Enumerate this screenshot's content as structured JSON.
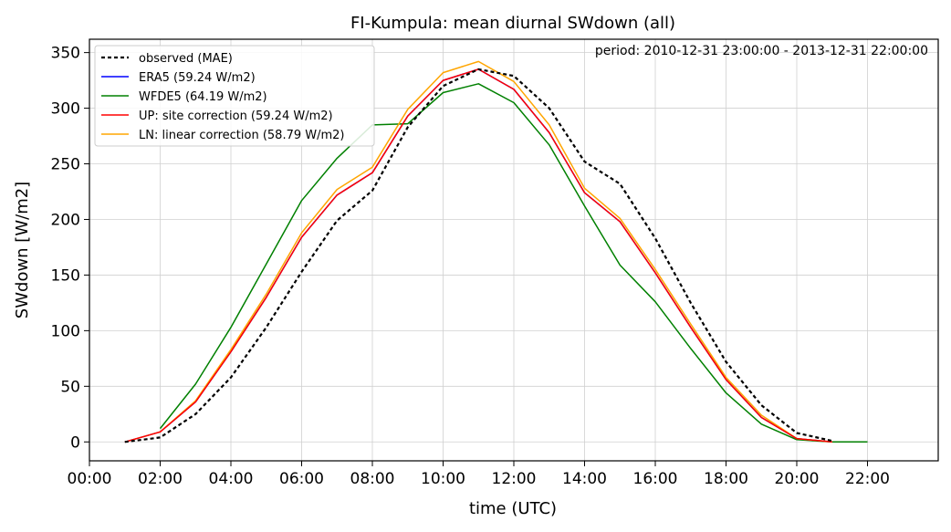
{
  "chart_data": {
    "type": "line",
    "title": "FI-Kumpula: mean diurnal SWdown (all)",
    "xlabel": "time (UTC)",
    "ylabel": "SWdown [W/m2]",
    "annotation": "period: 2010-12-31 23:00:00 - 2013-12-31 22:00:00",
    "xlim": [
      0,
      24
    ],
    "ylim": [
      -17,
      362
    ],
    "x_ticks": [
      0,
      2,
      4,
      6,
      8,
      10,
      12,
      14,
      16,
      18,
      20,
      22
    ],
    "x_tick_labels": [
      "00:00",
      "02:00",
      "04:00",
      "06:00",
      "08:00",
      "10:00",
      "12:00",
      "14:00",
      "16:00",
      "18:00",
      "20:00",
      "22:00"
    ],
    "y_ticks": [
      0,
      50,
      100,
      150,
      200,
      250,
      300,
      350
    ],
    "y_tick_labels": [
      "0",
      "50",
      "100",
      "150",
      "200",
      "250",
      "300",
      "350"
    ],
    "grid": true,
    "legend_position": "top-left",
    "series": [
      {
        "name": "observed (MAE)",
        "color": "#000000",
        "dashed": true,
        "x": [
          1,
          2,
          3,
          4,
          5,
          6,
          7,
          8,
          9,
          10,
          11,
          12,
          13,
          14,
          15,
          16,
          17,
          18,
          19,
          20,
          21
        ],
        "values": [
          0,
          4,
          25,
          58,
          103,
          153,
          199,
          226,
          283,
          320,
          335,
          329,
          300,
          252,
          232,
          183,
          125,
          72,
          33,
          8,
          1
        ]
      },
      {
        "name": "ERA5 (59.24 W/m2)",
        "color": "#0000ff",
        "dashed": false,
        "x": [
          1,
          2,
          3,
          4,
          5,
          6,
          7,
          8,
          9,
          10,
          11,
          12,
          13,
          14,
          15,
          16,
          17,
          18,
          19,
          20,
          21
        ],
        "values": [
          0,
          9,
          36,
          81,
          130,
          184,
          222,
          242,
          293,
          325,
          335,
          317,
          278,
          224,
          198,
          152,
          103,
          56,
          22,
          3,
          0
        ]
      },
      {
        "name": "WFDE5 (64.19 W/m2)",
        "color": "#008000",
        "dashed": false,
        "x": [
          2,
          3,
          4,
          5,
          6,
          7,
          8,
          9,
          10,
          11,
          12,
          13,
          14,
          15,
          16,
          17,
          18,
          19,
          20,
          21,
          22
        ],
        "values": [
          12,
          52,
          103,
          160,
          217,
          255,
          285,
          286,
          314,
          322,
          305,
          267,
          212,
          159,
          126,
          84,
          44,
          16,
          2,
          0,
          0
        ]
      },
      {
        "name": "UP: site correction (59.24 W/m2)",
        "color": "#ff0000",
        "dashed": false,
        "x": [
          1,
          2,
          3,
          4,
          5,
          6,
          7,
          8,
          9,
          10,
          11,
          12,
          13,
          14,
          15,
          16,
          17,
          18,
          19,
          20,
          21
        ],
        "values": [
          0,
          9,
          36,
          81,
          130,
          184,
          222,
          242,
          293,
          325,
          335,
          317,
          278,
          224,
          198,
          152,
          103,
          56,
          22,
          3,
          0
        ]
      },
      {
        "name": "LN: linear correction (58.79 W/m2)",
        "color": "#ffa500",
        "dashed": false,
        "x": [
          1,
          2,
          3,
          4,
          5,
          6,
          7,
          8,
          9,
          10,
          11,
          12,
          13,
          14,
          15,
          16,
          17,
          18,
          19,
          20,
          21
        ],
        "values": [
          0,
          9,
          37,
          83,
          133,
          188,
          227,
          247,
          299,
          332,
          342,
          324,
          285,
          228,
          201,
          155,
          106,
          58,
          24,
          3,
          0
        ]
      }
    ]
  }
}
